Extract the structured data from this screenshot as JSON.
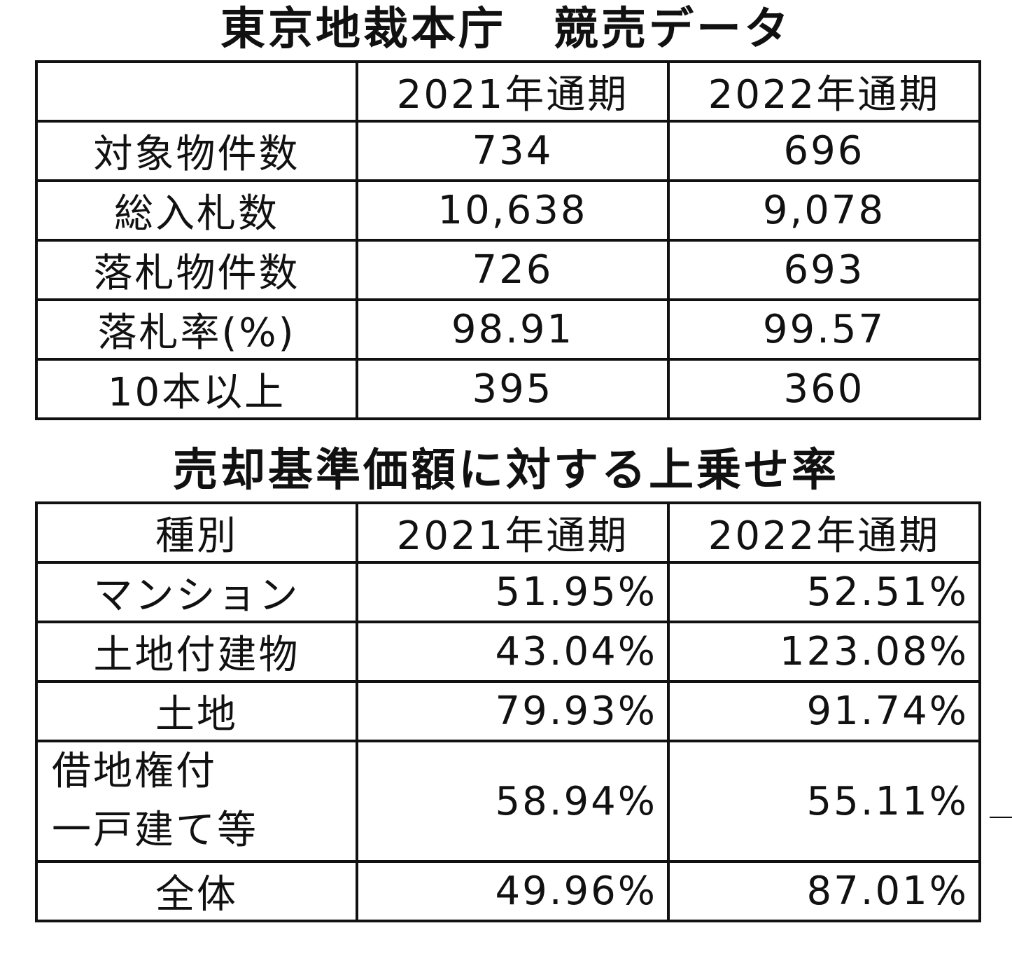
{
  "section1": {
    "title": "東京地裁本庁　競売データ",
    "headers": [
      "",
      "2021年通期",
      "2022年通期"
    ],
    "rows": [
      {
        "label": "対象物件数",
        "v2021": "734",
        "v2022": "696"
      },
      {
        "label": "総入札数",
        "v2021": "10,638",
        "v2022": "9,078"
      },
      {
        "label": "落札物件数",
        "v2021": "726",
        "v2022": "693"
      },
      {
        "label": "落札率(%)",
        "v2021": "98.91",
        "v2022": "99.57"
      },
      {
        "label": "10本以上",
        "v2021": "395",
        "v2022": "360"
      }
    ]
  },
  "section2": {
    "title": "売却基準価額に対する上乗せ率",
    "headers": [
      "種別",
      "2021年通期",
      "2022年通期"
    ],
    "rows": [
      {
        "label": "マンション",
        "v2021": "51.95%",
        "v2022": "52.51%"
      },
      {
        "label": "土地付建物",
        "v2021": "43.04%",
        "v2022": "123.08%"
      },
      {
        "label": "土地",
        "v2021": "79.93%",
        "v2022": "91.74%"
      },
      {
        "label_line1": "借地権付",
        "label_line2": "一戸建て等",
        "v2021": "58.94%",
        "v2022": "55.11%"
      },
      {
        "label": "全体",
        "v2021": "49.96%",
        "v2022": "87.01%"
      }
    ]
  }
}
